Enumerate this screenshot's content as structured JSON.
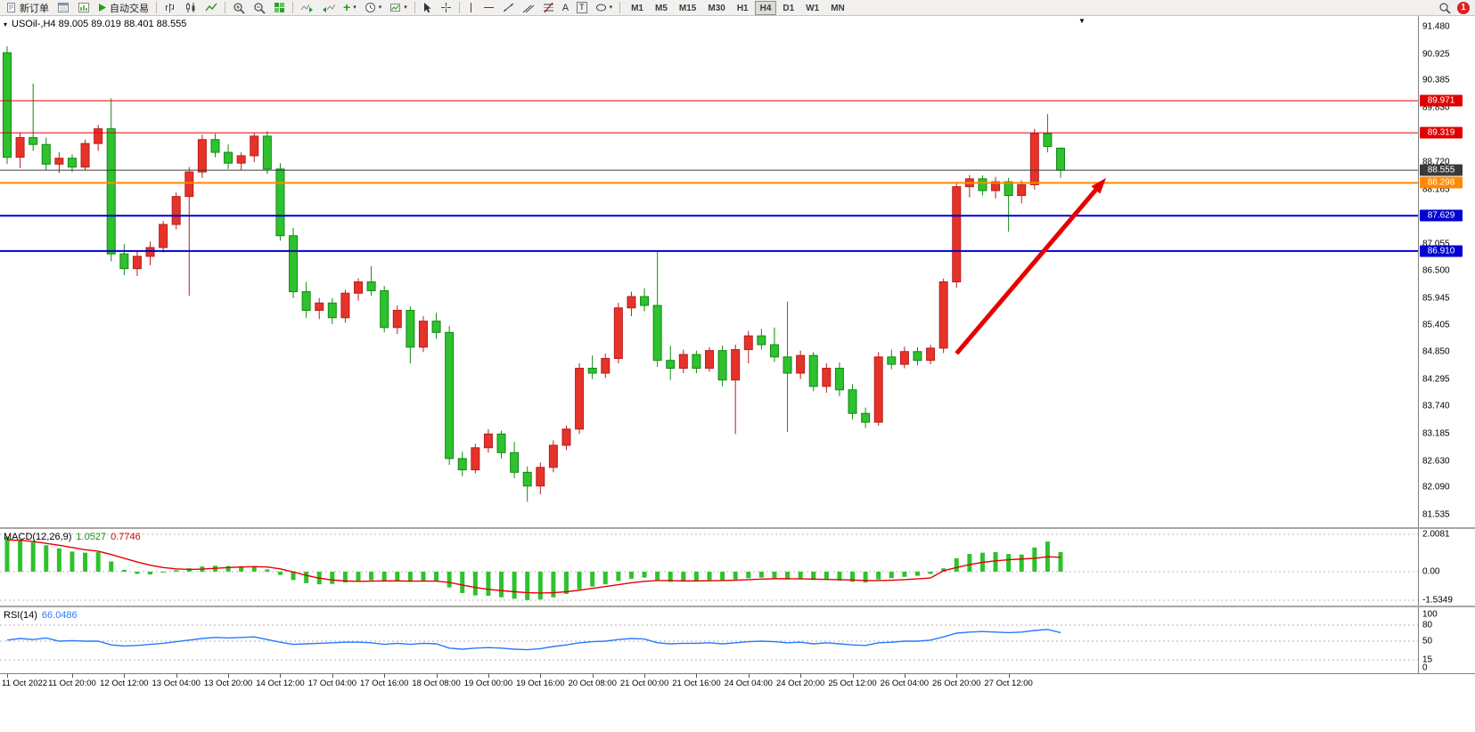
{
  "toolbar": {
    "new_order": "新订单",
    "auto_trading": "自动交易",
    "text_tool_label": "A",
    "label_tool_label": "T",
    "timeframes": [
      "M1",
      "M5",
      "M15",
      "M30",
      "H1",
      "H4",
      "D1",
      "W1",
      "MN"
    ],
    "active_timeframe": "H4",
    "badge_count": "1"
  },
  "chart": {
    "title": "USOil-,H4 89.005 89.019 88.401 88.555",
    "price_axis_labels": [
      "91.480",
      "90.925",
      "90.385",
      "89.830",
      "89.275",
      "88.720",
      "88.165",
      "87.610",
      "87.055",
      "86.500",
      "85.945",
      "85.405",
      "84.850",
      "84.295",
      "83.740",
      "83.185",
      "82.630",
      "82.090",
      "81.535"
    ],
    "time_axis_labels": [
      "11 Oct 2022",
      "11 Oct 20:00",
      "12 Oct 12:00",
      "13 Oct 04:00",
      "13 Oct 20:00",
      "14 Oct 12:00",
      "17 Oct 04:00",
      "17 Oct 16:00",
      "18 Oct 08:00",
      "19 Oct 00:00",
      "19 Oct 16:00",
      "20 Oct 08:00",
      "21 Oct 00:00",
      "21 Oct 16:00",
      "24 Oct 04:00",
      "24 Oct 20:00",
      "25 Oct 12:00",
      "26 Oct 04:00",
      "26 Oct 20:00",
      "27 Oct 12:00"
    ],
    "hlines": [
      {
        "price": 89.971,
        "label": "89.971",
        "color": "#e00000",
        "width": 1
      },
      {
        "price": 89.319,
        "label": "89.319",
        "color": "#e00000",
        "width": 1
      },
      {
        "price": 88.555,
        "label": "88.555",
        "color": "#3a3a3a",
        "width": 1
      },
      {
        "price": 88.298,
        "label": "88.298",
        "color": "#ff8a00",
        "width": 2
      },
      {
        "price": 87.629,
        "label": "87.629",
        "color": "#0000d2",
        "width": 2
      },
      {
        "price": 86.91,
        "label": "86.910",
        "color": "#0000d2",
        "width": 2
      }
    ],
    "colors": {
      "bull": "#e63329",
      "bull_edge": "#b81d1d",
      "bear": "#2ec22e",
      "bear_edge": "#128a12",
      "macd_hist": "#2ec22e",
      "macd_signal": "#e60000",
      "rsi_line": "#2979ff",
      "arrow": "#e60000"
    }
  },
  "indicators": {
    "macd": {
      "name": "MACD(12,26,9)",
      "value1": "1.0527",
      "value2": "0.7746",
      "scale": [
        "2.0081",
        "0.00",
        "-1.5349"
      ]
    },
    "rsi": {
      "name": "RSI(14)",
      "value": "66.0486",
      "scale": [
        "100",
        "80",
        "50",
        "15",
        "0"
      ],
      "levels": [
        80,
        50,
        15
      ]
    }
  },
  "chart_data": {
    "type": "candlestick",
    "symbol": "USOil-",
    "timeframe": "H4",
    "last_bar": {
      "open": 89.005,
      "high": 89.019,
      "low": 88.401,
      "close": 88.555
    },
    "price_range": [
      81.535,
      91.48
    ],
    "candles": [
      [
        90.95,
        91.08,
        88.68,
        88.82
      ],
      [
        88.82,
        89.32,
        88.6,
        89.22
      ],
      [
        89.22,
        90.32,
        88.95,
        89.08
      ],
      [
        89.08,
        89.22,
        88.55,
        88.68
      ],
      [
        88.68,
        88.92,
        88.5,
        88.8
      ],
      [
        88.8,
        88.88,
        88.52,
        88.62
      ],
      [
        88.62,
        89.18,
        88.55,
        89.1
      ],
      [
        89.1,
        89.48,
        88.95,
        89.4
      ],
      [
        89.4,
        90.02,
        86.7,
        86.85
      ],
      [
        86.85,
        87.05,
        86.42,
        86.55
      ],
      [
        86.55,
        86.9,
        86.4,
        86.8
      ],
      [
        86.8,
        87.1,
        86.62,
        86.98
      ],
      [
        86.98,
        87.52,
        86.88,
        87.45
      ],
      [
        87.45,
        88.1,
        87.35,
        88.02
      ],
      [
        88.02,
        88.62,
        86.0,
        88.52
      ],
      [
        88.52,
        89.28,
        88.4,
        89.18
      ],
      [
        89.18,
        89.3,
        88.82,
        88.92
      ],
      [
        88.92,
        89.08,
        88.58,
        88.7
      ],
      [
        88.7,
        88.92,
        88.55,
        88.85
      ],
      [
        88.85,
        89.32,
        88.72,
        89.25
      ],
      [
        89.25,
        89.35,
        88.48,
        88.58
      ],
      [
        88.58,
        88.7,
        87.12,
        87.22
      ],
      [
        87.22,
        87.38,
        85.95,
        86.08
      ],
      [
        86.08,
        86.28,
        85.55,
        85.7
      ],
      [
        85.7,
        85.95,
        85.52,
        85.85
      ],
      [
        85.85,
        85.95,
        85.42,
        85.55
      ],
      [
        85.55,
        86.12,
        85.45,
        86.05
      ],
      [
        86.05,
        86.35,
        85.9,
        86.28
      ],
      [
        86.28,
        86.6,
        86.0,
        86.1
      ],
      [
        86.1,
        86.2,
        85.25,
        85.35
      ],
      [
        85.35,
        85.8,
        85.22,
        85.7
      ],
      [
        85.7,
        85.78,
        84.62,
        84.95
      ],
      [
        84.95,
        85.58,
        84.85,
        85.48
      ],
      [
        85.48,
        85.65,
        85.12,
        85.25
      ],
      [
        85.25,
        85.38,
        82.55,
        82.68
      ],
      [
        82.68,
        82.82,
        82.32,
        82.45
      ],
      [
        82.45,
        82.98,
        82.38,
        82.9
      ],
      [
        82.9,
        83.28,
        82.8,
        83.18
      ],
      [
        83.18,
        83.25,
        82.68,
        82.8
      ],
      [
        82.8,
        83.02,
        82.28,
        82.4
      ],
      [
        82.4,
        82.52,
        81.8,
        82.12
      ],
      [
        82.12,
        82.6,
        81.95,
        82.5
      ],
      [
        82.5,
        83.05,
        82.4,
        82.95
      ],
      [
        82.95,
        83.35,
        82.85,
        83.28
      ],
      [
        83.28,
        84.62,
        83.18,
        84.52
      ],
      [
        84.52,
        84.78,
        84.3,
        84.42
      ],
      [
        84.42,
        84.82,
        84.32,
        84.72
      ],
      [
        84.72,
        85.85,
        84.62,
        85.75
      ],
      [
        85.75,
        86.08,
        85.58,
        85.98
      ],
      [
        85.98,
        86.15,
        85.68,
        85.8
      ],
      [
        85.8,
        86.92,
        84.55,
        84.68
      ],
      [
        84.68,
        84.98,
        84.28,
        84.52
      ],
      [
        84.52,
        84.9,
        84.42,
        84.8
      ],
      [
        84.8,
        84.88,
        84.42,
        84.52
      ],
      [
        84.52,
        84.95,
        84.45,
        84.88
      ],
      [
        84.88,
        84.98,
        84.15,
        84.28
      ],
      [
        84.28,
        85.0,
        83.18,
        84.9
      ],
      [
        84.9,
        85.28,
        84.62,
        85.18
      ],
      [
        85.18,
        85.32,
        84.9,
        85.0
      ],
      [
        85.0,
        85.35,
        84.65,
        84.75
      ],
      [
        84.75,
        85.88,
        83.22,
        84.42
      ],
      [
        84.42,
        84.88,
        84.3,
        84.78
      ],
      [
        84.78,
        84.85,
        84.05,
        84.15
      ],
      [
        84.15,
        84.62,
        84.02,
        84.52
      ],
      [
        84.52,
        84.64,
        83.95,
        84.08
      ],
      [
        84.08,
        84.2,
        83.48,
        83.6
      ],
      [
        83.6,
        83.72,
        83.3,
        83.42
      ],
      [
        83.42,
        84.85,
        83.35,
        84.75
      ],
      [
        84.75,
        84.9,
        84.5,
        84.6
      ],
      [
        84.6,
        84.96,
        84.52,
        84.86
      ],
      [
        84.86,
        84.95,
        84.58,
        84.68
      ],
      [
        84.68,
        85.0,
        84.6,
        84.93
      ],
      [
        84.93,
        86.35,
        84.83,
        86.28
      ],
      [
        86.28,
        88.32,
        86.16,
        88.22
      ],
      [
        88.22,
        88.46,
        88.0,
        88.38
      ],
      [
        88.38,
        88.45,
        88.04,
        88.14
      ],
      [
        88.14,
        88.42,
        87.98,
        88.32
      ],
      [
        88.32,
        88.4,
        87.3,
        88.04
      ],
      [
        88.04,
        88.35,
        87.88,
        88.26
      ],
      [
        88.26,
        89.4,
        88.16,
        89.3
      ],
      [
        89.3,
        89.7,
        88.92,
        89.04
      ],
      [
        89.005,
        89.019,
        88.401,
        88.555
      ]
    ],
    "tick_indices": [
      0,
      5,
      9,
      13,
      17,
      21,
      25,
      29,
      33,
      37,
      41,
      45,
      49,
      53,
      57,
      61,
      65,
      69,
      73,
      77
    ],
    "macd": {
      "range": [
        -1.5349,
        2.0081
      ],
      "histogram": [
        1.88,
        1.72,
        1.58,
        1.42,
        1.25,
        1.08,
        1.02,
        1.05,
        0.55,
        0.1,
        -0.12,
        -0.15,
        -0.05,
        0.08,
        0.18,
        0.28,
        0.32,
        0.3,
        0.28,
        0.3,
        0.12,
        -0.18,
        -0.45,
        -0.62,
        -0.68,
        -0.66,
        -0.58,
        -0.5,
        -0.46,
        -0.52,
        -0.5,
        -0.55,
        -0.5,
        -0.52,
        -0.85,
        -1.15,
        -1.28,
        -1.3,
        -1.38,
        -1.46,
        -1.53,
        -1.5,
        -1.38,
        -1.2,
        -0.95,
        -0.8,
        -0.68,
        -0.5,
        -0.38,
        -0.32,
        -0.45,
        -0.55,
        -0.52,
        -0.5,
        -0.45,
        -0.48,
        -0.42,
        -0.35,
        -0.32,
        -0.35,
        -0.42,
        -0.38,
        -0.45,
        -0.42,
        -0.48,
        -0.55,
        -0.58,
        -0.42,
        -0.35,
        -0.28,
        -0.22,
        -0.12,
        0.18,
        0.72,
        0.95,
        1.02,
        1.05,
        0.95,
        0.92,
        1.3,
        1.62,
        1.05
      ],
      "signal": [
        1.7,
        1.68,
        1.62,
        1.52,
        1.42,
        1.3,
        1.18,
        1.1,
        0.92,
        0.72,
        0.52,
        0.35,
        0.22,
        0.15,
        0.12,
        0.14,
        0.18,
        0.22,
        0.25,
        0.27,
        0.25,
        0.15,
        -0.02,
        -0.2,
        -0.35,
        -0.45,
        -0.5,
        -0.52,
        -0.51,
        -0.5,
        -0.5,
        -0.51,
        -0.51,
        -0.51,
        -0.58,
        -0.72,
        -0.85,
        -0.95,
        -1.02,
        -1.08,
        -1.13,
        -1.15,
        -1.13,
        -1.08,
        -1.0,
        -0.9,
        -0.8,
        -0.7,
        -0.6,
        -0.52,
        -0.48,
        -0.48,
        -0.5,
        -0.5,
        -0.49,
        -0.48,
        -0.46,
        -0.43,
        -0.4,
        -0.38,
        -0.38,
        -0.39,
        -0.4,
        -0.42,
        -0.43,
        -0.45,
        -0.48,
        -0.48,
        -0.46,
        -0.43,
        -0.39,
        -0.34,
        0.05,
        0.22,
        0.38,
        0.5,
        0.58,
        0.64,
        0.68,
        0.72,
        0.8,
        0.77
      ]
    },
    "rsi": {
      "range": [
        0,
        100
      ],
      "values": [
        52,
        55,
        53,
        56,
        50,
        51,
        50,
        50,
        43,
        41,
        42,
        44,
        46,
        49,
        52,
        55,
        57,
        56,
        57,
        58,
        53,
        48,
        44,
        45,
        46,
        47,
        48,
        48,
        47,
        44,
        46,
        44,
        46,
        45,
        37,
        35,
        37,
        38,
        37,
        35,
        34,
        36,
        40,
        43,
        47,
        49,
        50,
        53,
        55,
        54,
        47,
        45,
        46,
        46,
        47,
        45,
        47,
        49,
        50,
        49,
        47,
        48,
        45,
        47,
        45,
        43,
        42,
        47,
        48,
        50,
        50,
        52,
        58,
        65,
        67,
        68,
        67,
        66,
        67,
        70,
        72,
        66
      ]
    },
    "annotations": [
      {
        "type": "arrow",
        "color": "#e60000",
        "from": {
          "index": 73,
          "price": 84.82
        },
        "to": {
          "index": 84.5,
          "price": 88.4
        }
      }
    ]
  }
}
